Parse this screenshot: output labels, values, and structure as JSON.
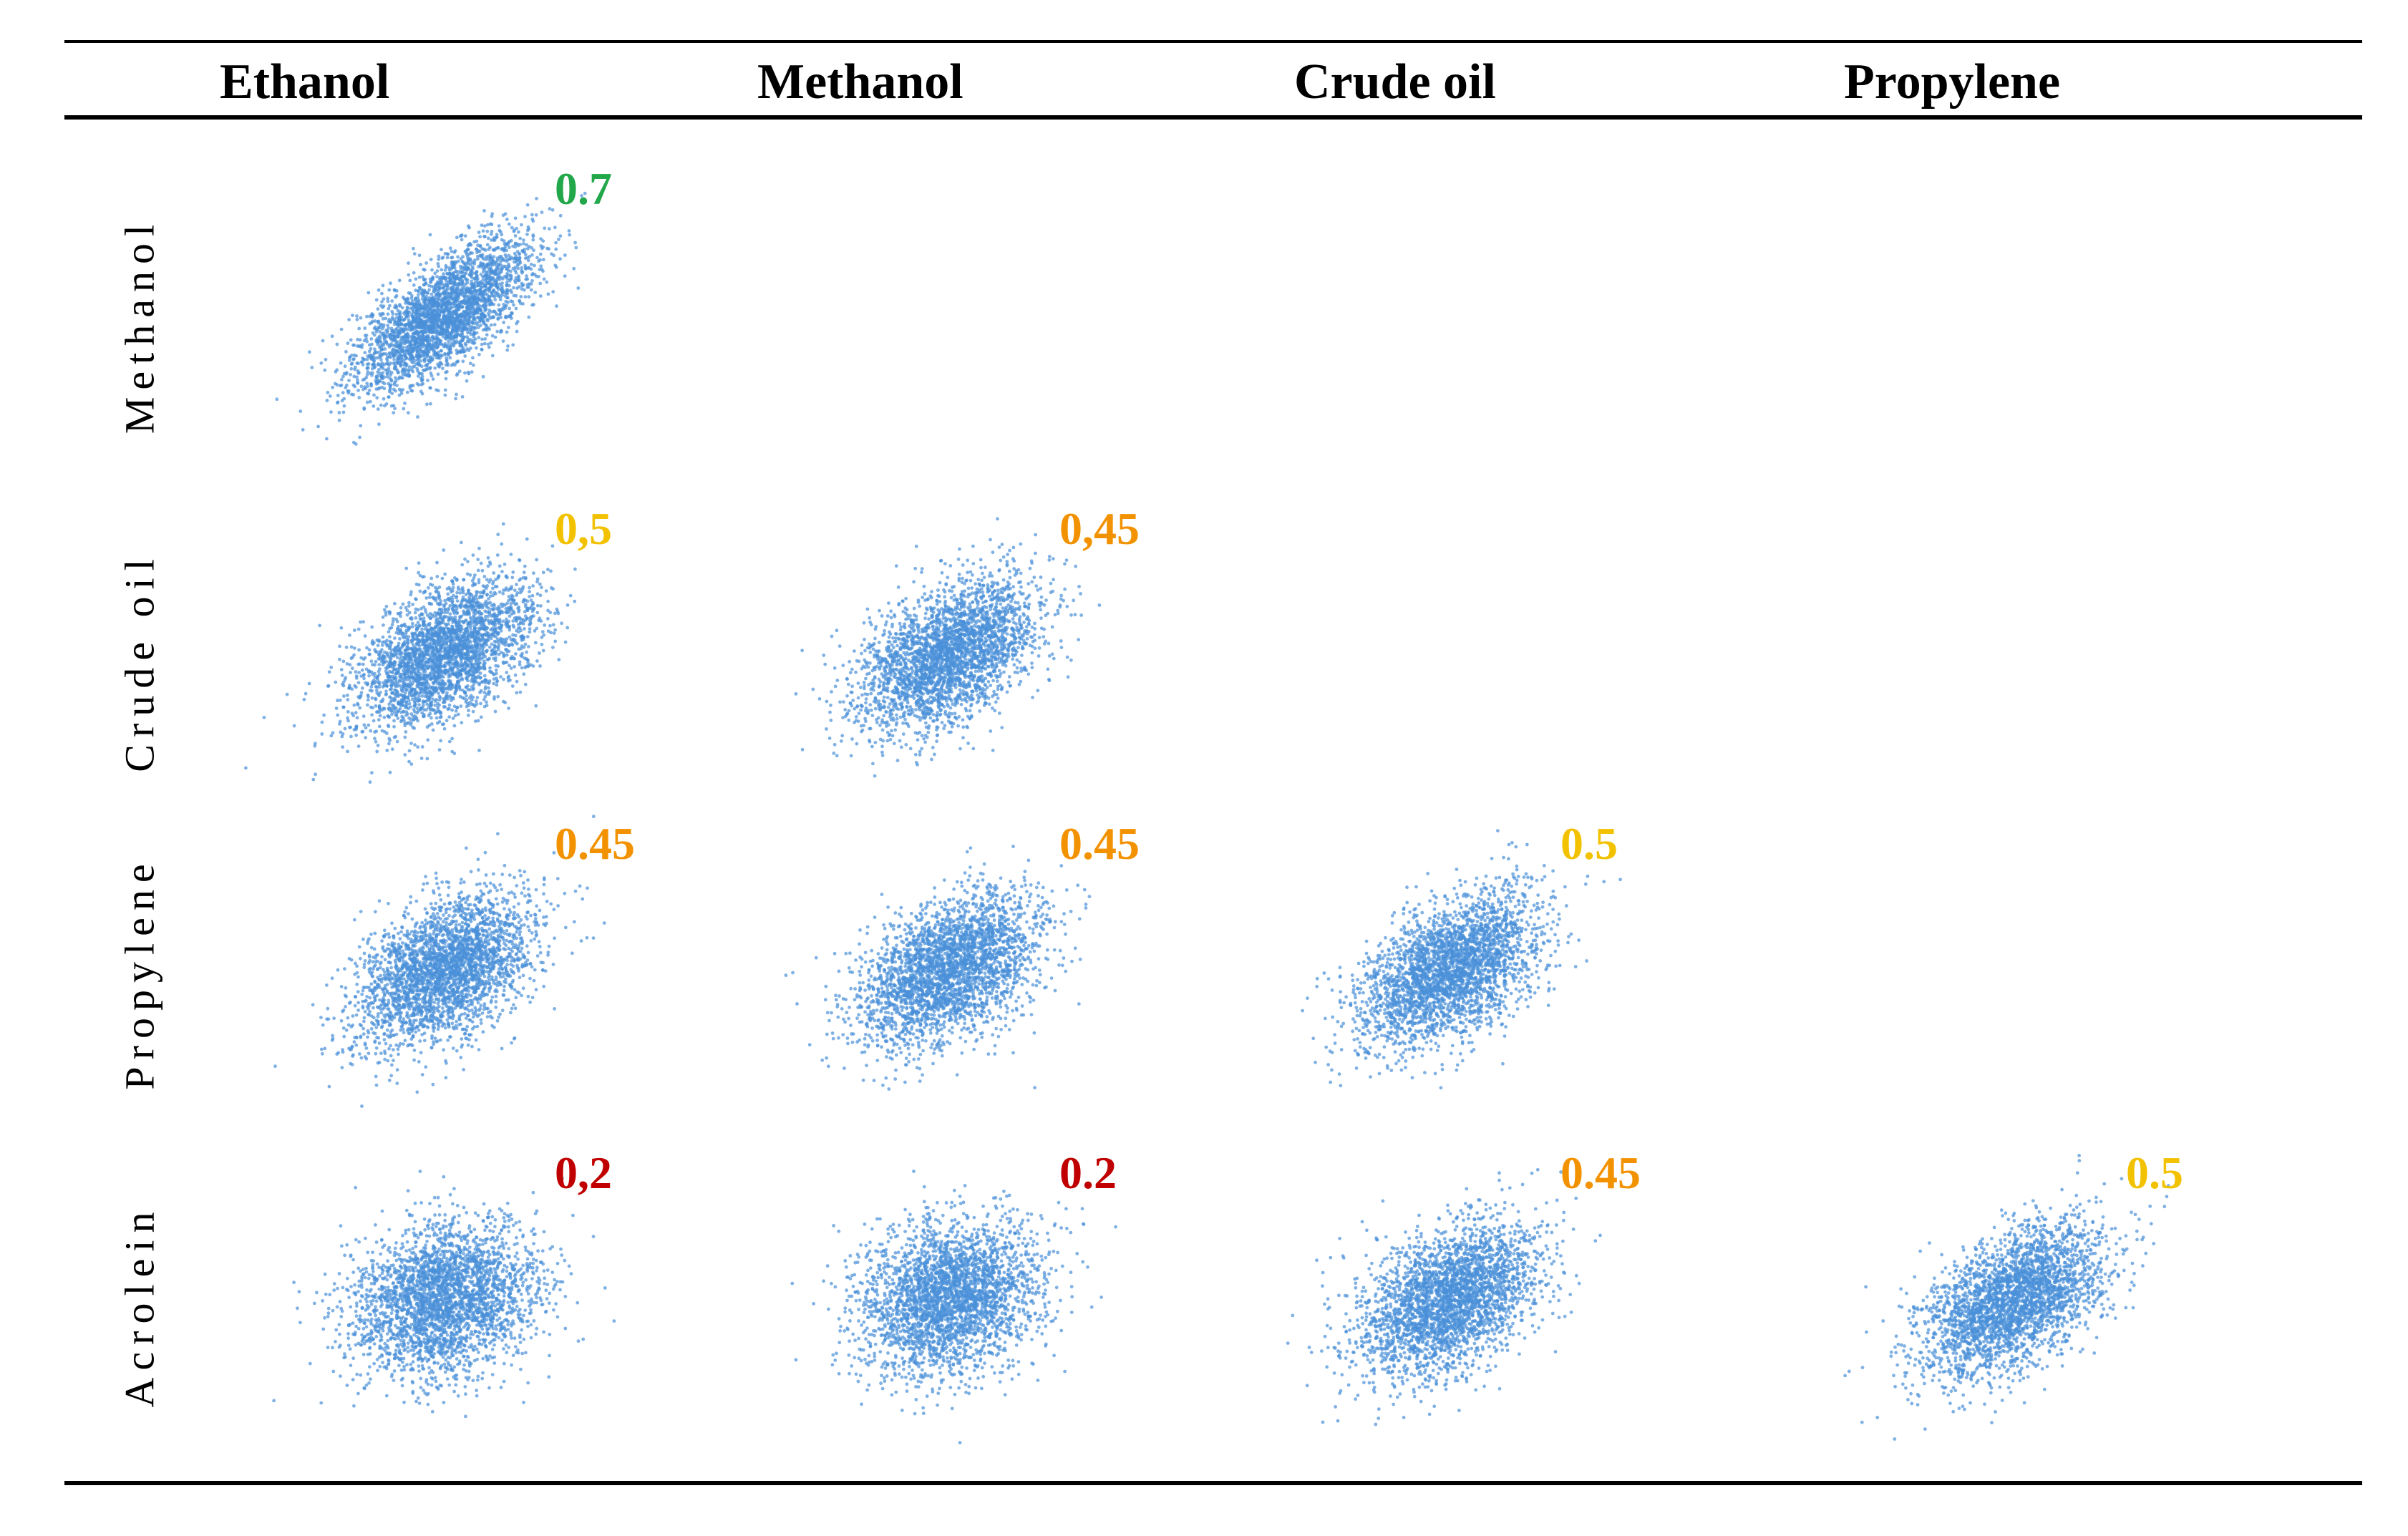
{
  "chart_data": {
    "type": "scatter",
    "title": "",
    "columns": [
      "Ethanol",
      "Methanol",
      "Crude oil",
      "Propylene"
    ],
    "rows": [
      "Methanol",
      "Crude oil",
      "Propylene",
      "Acrolein"
    ],
    "points_per_panel": 3000,
    "point_color": "#4a90d9",
    "panels": [
      {
        "row": 0,
        "col": 0,
        "x_var": "Ethanol",
        "y_var": "Methanol",
        "correlation": 0.7,
        "label": "0.7",
        "label_color": "#22a84a"
      },
      {
        "row": 1,
        "col": 0,
        "x_var": "Ethanol",
        "y_var": "Crude oil",
        "correlation": 0.5,
        "label": "0,5",
        "label_color": "#f2c200"
      },
      {
        "row": 1,
        "col": 1,
        "x_var": "Methanol",
        "y_var": "Crude oil",
        "correlation": 0.45,
        "label": "0,45",
        "label_color": "#f39200"
      },
      {
        "row": 2,
        "col": 0,
        "x_var": "Ethanol",
        "y_var": "Propylene",
        "correlation": 0.45,
        "label": "0.45",
        "label_color": "#f39200"
      },
      {
        "row": 2,
        "col": 1,
        "x_var": "Methanol",
        "y_var": "Propylene",
        "correlation": 0.45,
        "label": "0.45",
        "label_color": "#f39200"
      },
      {
        "row": 2,
        "col": 2,
        "x_var": "Crude oil",
        "y_var": "Propylene",
        "correlation": 0.5,
        "label": "0.5",
        "label_color": "#f2c200"
      },
      {
        "row": 3,
        "col": 0,
        "x_var": "Ethanol",
        "y_var": "Acrolein",
        "correlation": 0.2,
        "label": "0,2",
        "label_color": "#c00000"
      },
      {
        "row": 3,
        "col": 1,
        "x_var": "Methanol",
        "y_var": "Acrolein",
        "correlation": 0.2,
        "label": "0.2",
        "label_color": "#c00000"
      },
      {
        "row": 3,
        "col": 2,
        "x_var": "Crude oil",
        "y_var": "Acrolein",
        "correlation": 0.45,
        "label": "0.45",
        "label_color": "#f39200"
      },
      {
        "row": 3,
        "col": 3,
        "x_var": "Propylene",
        "y_var": "Acrolein",
        "correlation": 0.5,
        "label": "0.5",
        "label_color": "#f2c200"
      }
    ]
  }
}
